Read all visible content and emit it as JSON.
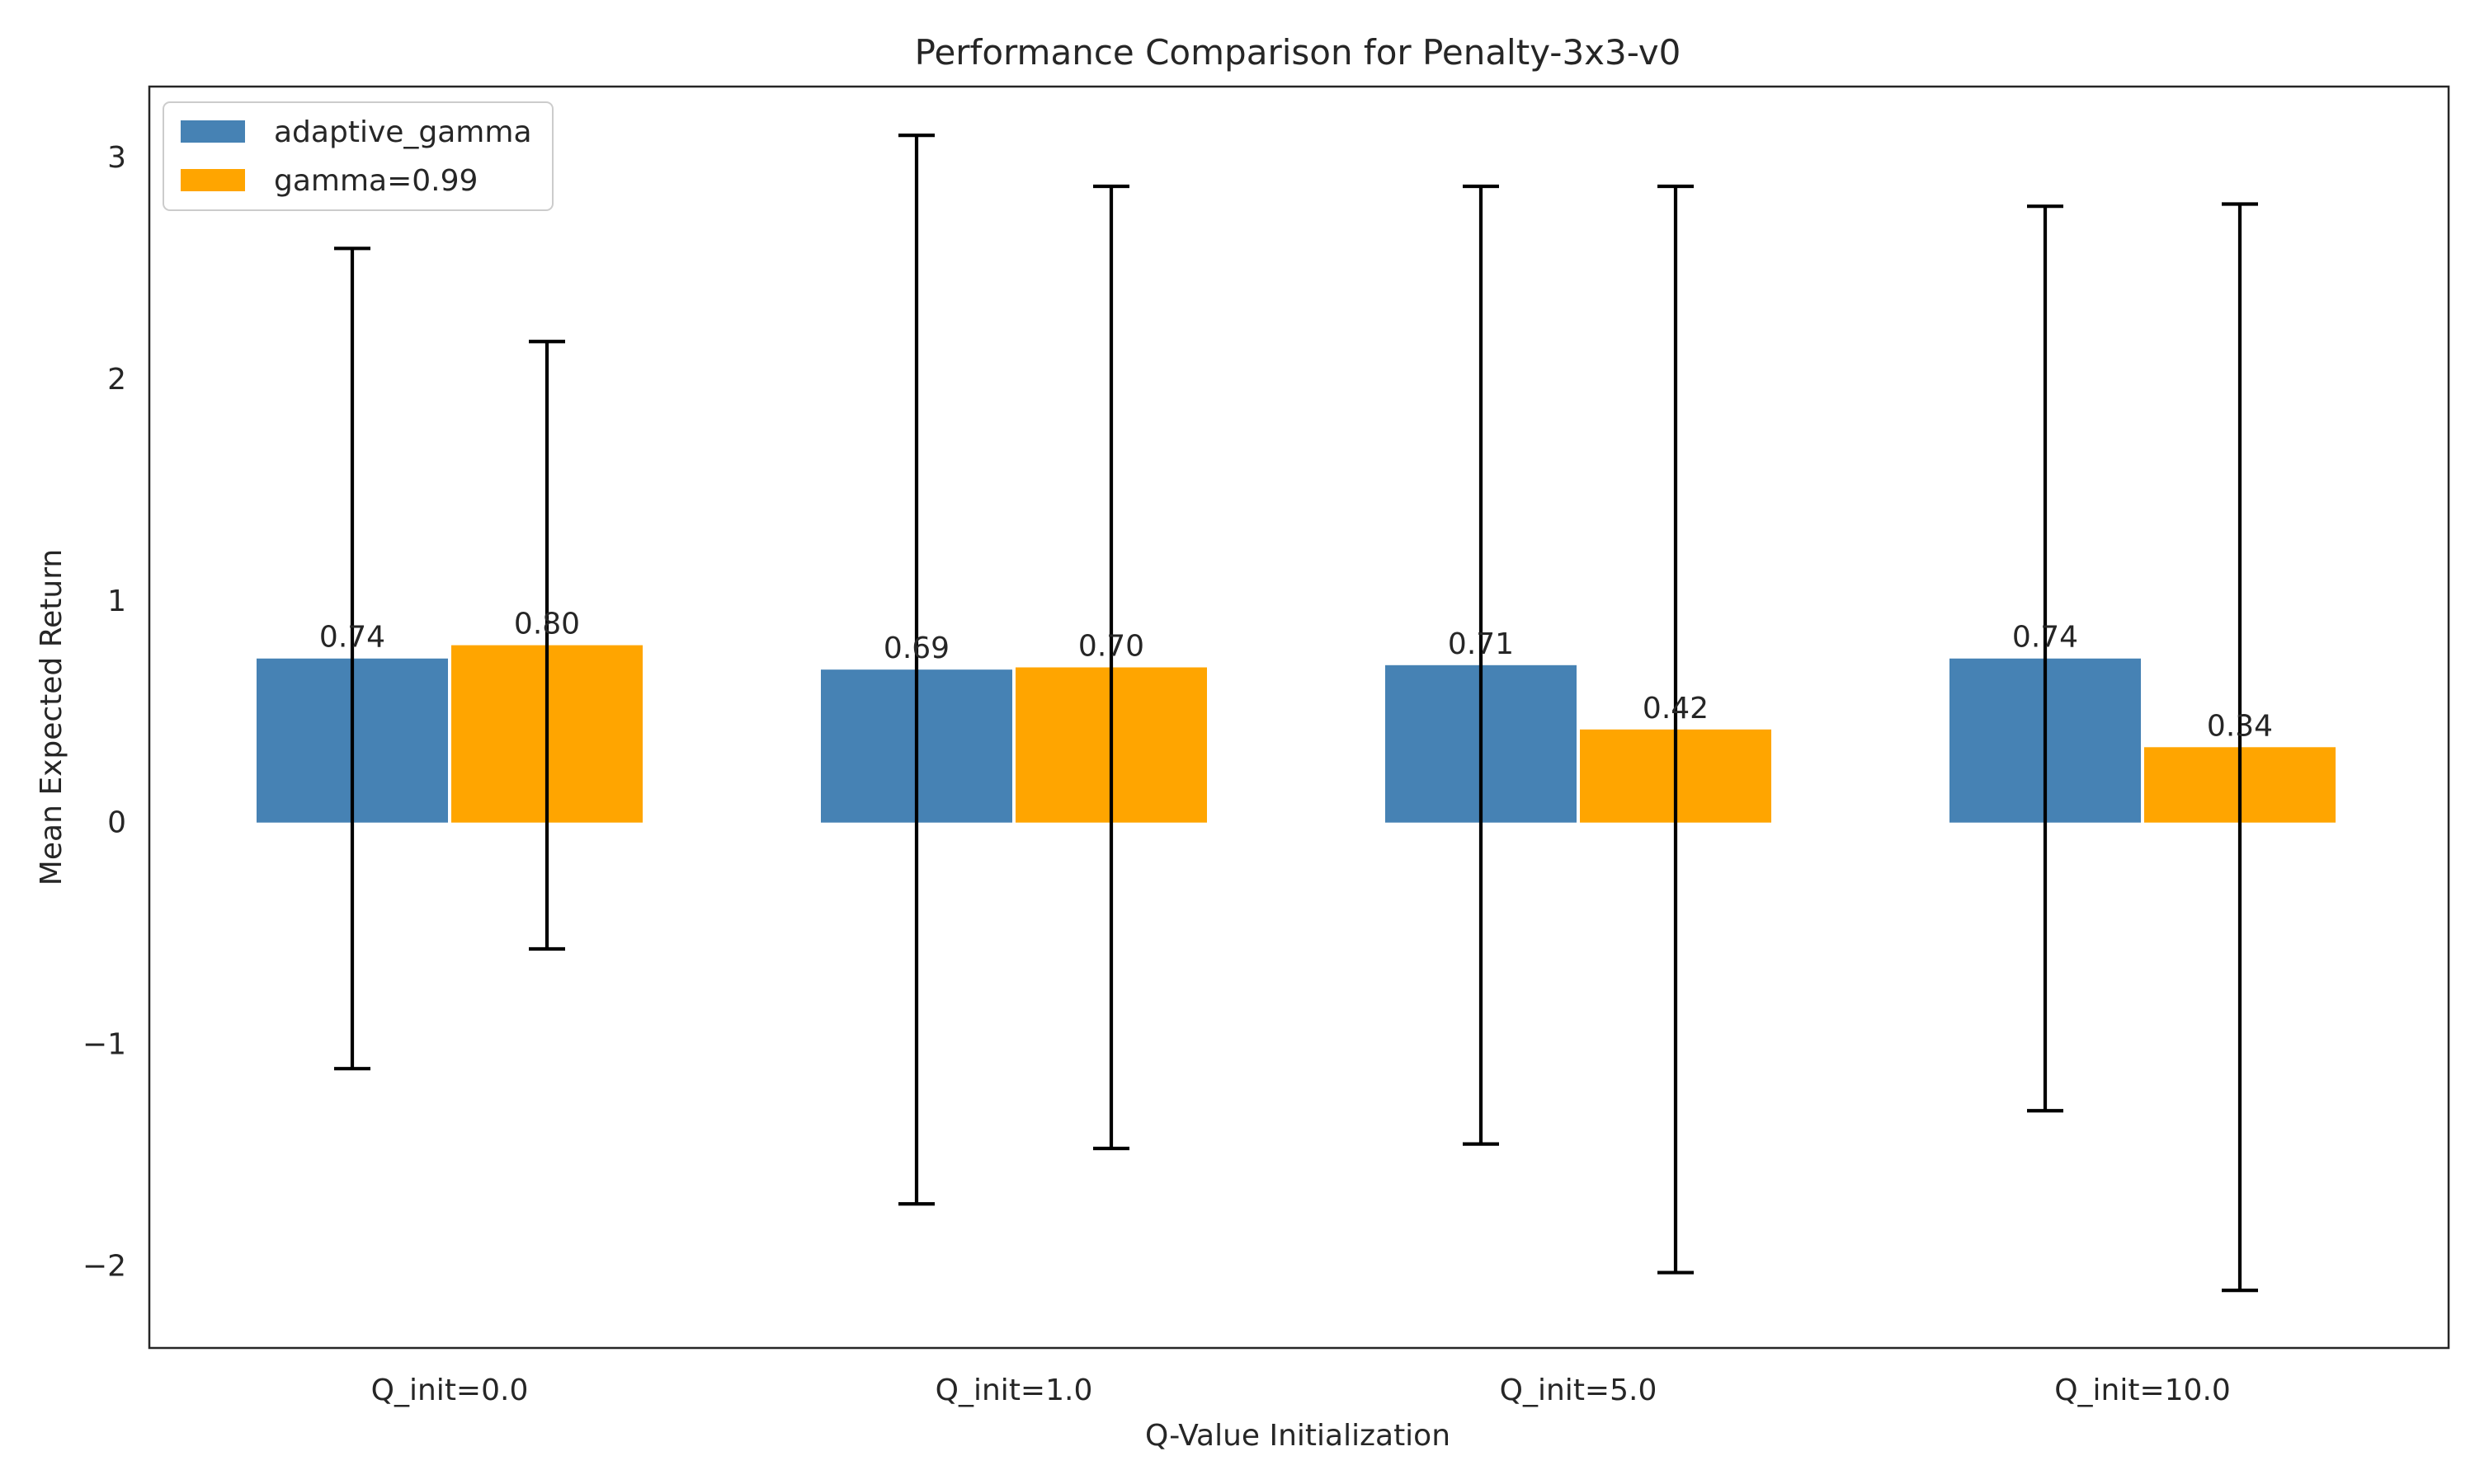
{
  "chart_data": {
    "type": "bar",
    "title": "Performance Comparison for Penalty-3x3-v0",
    "xlabel": "Q-Value Initialization",
    "ylabel": "Mean Expected Return",
    "categories": [
      "Q_init=0.0",
      "Q_init=1.0",
      "Q_init=5.0",
      "Q_init=10.0"
    ],
    "series": [
      {
        "name": "adaptive_gamma",
        "color": "#4682b4",
        "values": [
          0.74,
          0.69,
          0.71,
          0.74
        ],
        "value_labels": [
          "0.74",
          "0.69",
          "0.71",
          "0.74"
        ],
        "error": [
          1.85,
          2.41,
          2.16,
          2.04
        ]
      },
      {
        "name": "gamma=0.99",
        "color": "#ffa500",
        "values": [
          0.8,
          0.7,
          0.42,
          0.34
        ],
        "value_labels": [
          "0.80",
          "0.70",
          "0.42",
          "0.34"
        ],
        "error": [
          1.37,
          2.17,
          2.45,
          2.45
        ]
      }
    ],
    "ylim": [
      -2.37,
      3.32
    ],
    "yticks": [
      -2,
      -1,
      0,
      1,
      2,
      3
    ],
    "ytick_labels": [
      "−2",
      "−1",
      "0",
      "1",
      "2",
      "3"
    ],
    "grid": false,
    "legend_position": "upper-left"
  }
}
